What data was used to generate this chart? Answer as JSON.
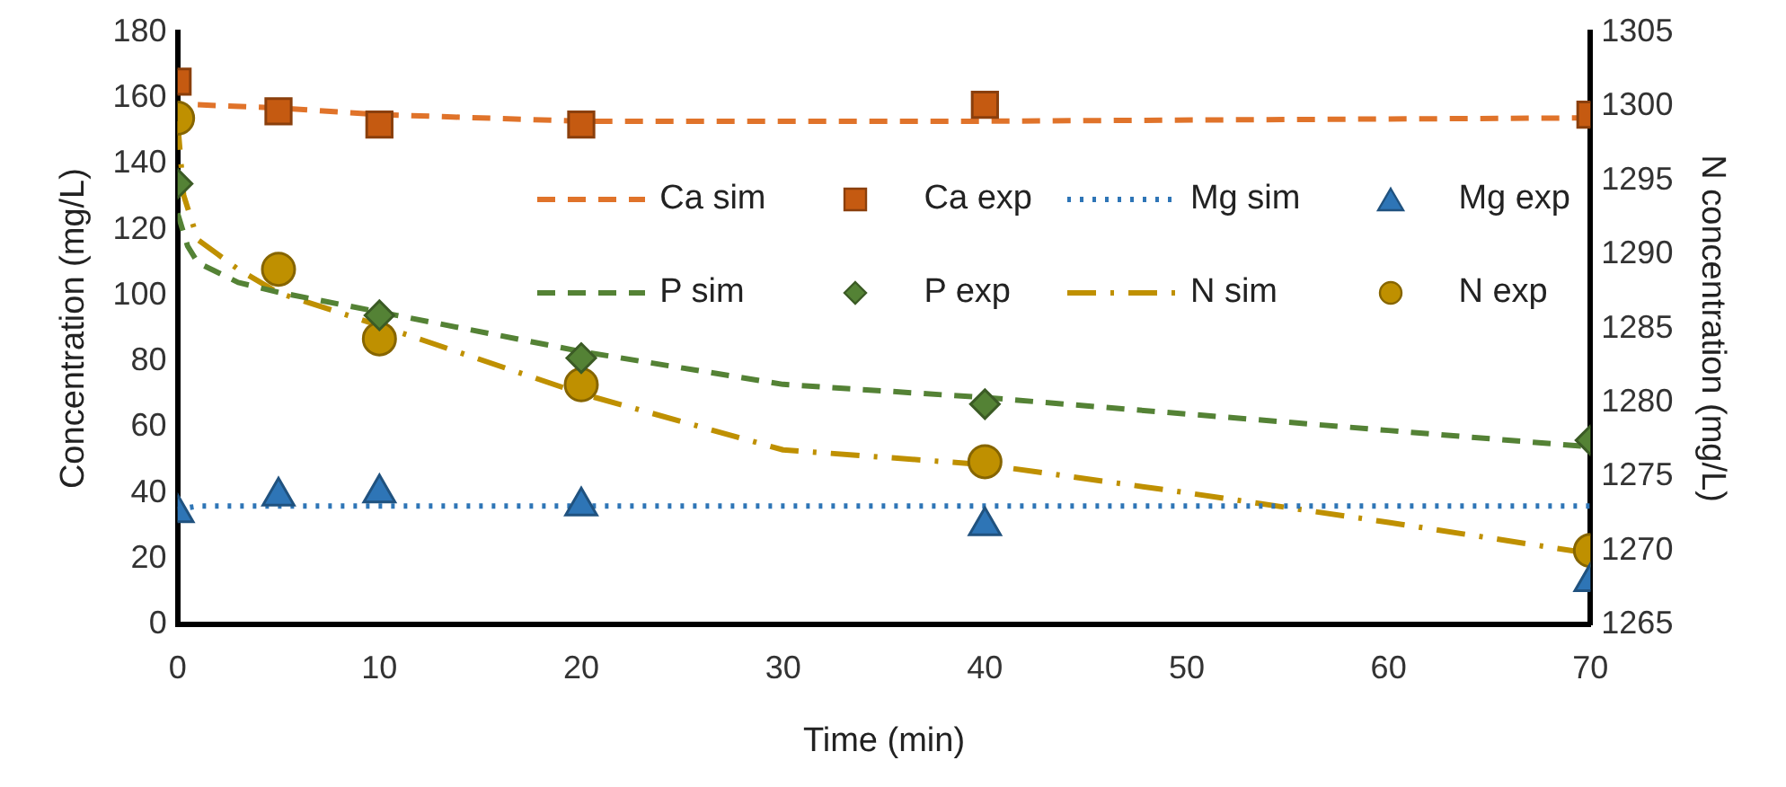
{
  "chart_data": {
    "type": "line",
    "xlabel": "Time (min)",
    "ylabel": "Concentration (mg/L)",
    "y2label": "N concentration (mg/L)",
    "xlim": [
      0,
      70
    ],
    "xticks": [
      0,
      10,
      20,
      30,
      40,
      50,
      60,
      70
    ],
    "ylim": [
      0,
      180
    ],
    "yticks": [
      0,
      20,
      40,
      60,
      80,
      100,
      120,
      140,
      160,
      180
    ],
    "y2lim": [
      1265,
      1305
    ],
    "y2ticks": [
      1265,
      1270,
      1275,
      1280,
      1285,
      1290,
      1295,
      1300,
      1305
    ],
    "grid": false,
    "legend": "top right",
    "series": [
      {
        "name": "Ca sim",
        "type": "line",
        "color": "#e0732a",
        "line_style": "dashed",
        "marker": "none",
        "x": [
          1,
          5,
          10,
          20,
          40,
          70
        ],
        "values": [
          158,
          157,
          155,
          153,
          153,
          154
        ]
      },
      {
        "name": "Ca exp",
        "type": "scatter",
        "color": "#c55a11",
        "marker": "square",
        "x": [
          0,
          5,
          10,
          20,
          40,
          70
        ],
        "values": [
          165,
          156,
          152,
          152,
          158,
          155
        ]
      },
      {
        "name": "Mg sim",
        "type": "line",
        "color": "#2e75b6",
        "line_style": "dotted",
        "marker": "none",
        "x": [
          0,
          1,
          70
        ],
        "values": [
          35,
          36,
          36
        ]
      },
      {
        "name": "Mg exp",
        "type": "scatter",
        "color": "#2e75b6",
        "marker": "triangle",
        "x": [
          0,
          5,
          10,
          20,
          40,
          70
        ],
        "values": [
          34,
          39,
          40,
          36,
          30,
          13
        ]
      },
      {
        "name": "P sim",
        "type": "line",
        "color": "#548235",
        "line_style": "dashed",
        "marker": "none",
        "x": [
          0,
          0.5,
          1,
          3,
          5,
          10,
          20,
          30,
          40,
          50,
          60,
          70
        ],
        "values": [
          125,
          115,
          110,
          104,
          101,
          95,
          83,
          73,
          69,
          64,
          59,
          54
        ]
      },
      {
        "name": "P exp",
        "type": "scatter",
        "color": "#548235",
        "marker": "diamond",
        "x": [
          0,
          10,
          20,
          40,
          70
        ],
        "values": [
          134,
          94,
          81,
          67,
          56
        ]
      },
      {
        "name": "N sim",
        "type": "line",
        "axis": "y2",
        "color": "#bf9000",
        "line_style": "dashdot",
        "marker": "none",
        "x": [
          0,
          0.3,
          1,
          2,
          3,
          5,
          10,
          20,
          30,
          40,
          50,
          60,
          70
        ],
        "values": [
          1299,
          1294,
          1291,
          1290,
          1289,
          1287.4,
          1285.2,
          1280.6,
          1276.8,
          1275.8,
          1273.9,
          1271.9,
          1269.8
        ]
      },
      {
        "name": "N exp",
        "type": "scatter",
        "axis": "y2",
        "color": "#bf9000",
        "marker": "circle",
        "x": [
          0,
          5,
          10,
          20,
          40,
          70
        ],
        "values": [
          1299.2,
          1289,
          1284.3,
          1281.2,
          1276,
          1270
        ]
      }
    ]
  }
}
